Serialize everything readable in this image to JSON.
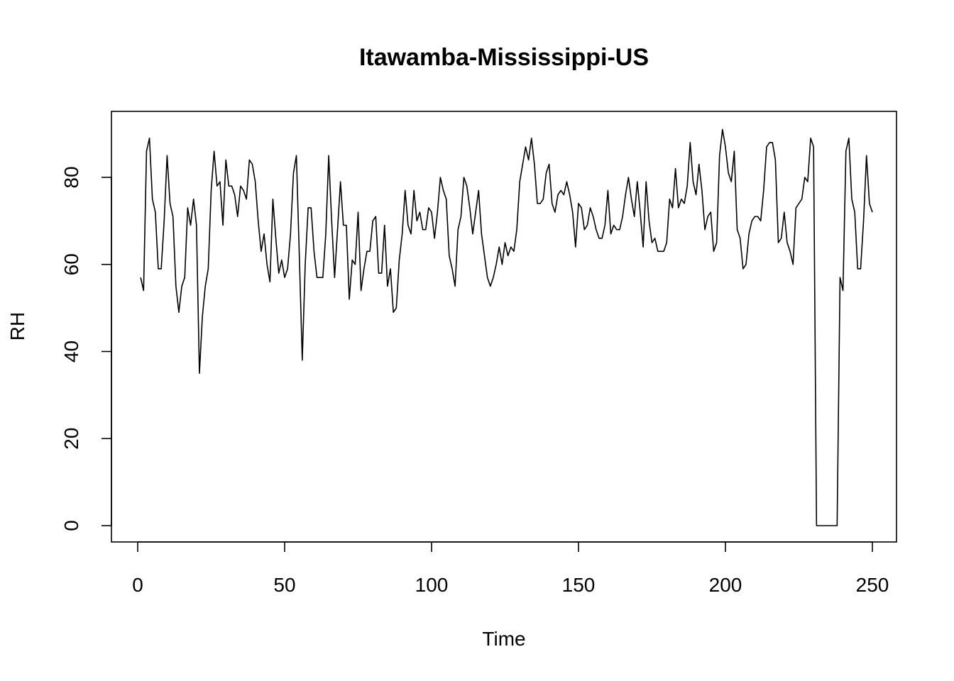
{
  "chart_data": {
    "type": "line",
    "title": "Itawamba-Mississippi-US",
    "xlabel": "Time",
    "ylabel": "RH",
    "xlim": [
      0,
      250
    ],
    "ylim": [
      0,
      90
    ],
    "x_ticks": [
      0,
      50,
      100,
      150,
      200,
      250
    ],
    "y_ticks": [
      0,
      20,
      40,
      60,
      80
    ],
    "grid": false,
    "legend": "none",
    "line_color": "#000000",
    "series": [
      {
        "values": [
          57,
          54,
          86,
          89,
          75,
          72,
          59,
          59,
          70,
          85,
          74,
          71,
          55,
          49,
          55,
          57,
          73,
          69,
          75,
          69,
          35,
          48,
          55,
          59,
          77,
          86,
          78,
          79,
          69,
          84,
          78,
          78,
          76,
          71,
          78,
          77,
          75,
          84,
          83,
          79,
          70,
          63,
          67,
          60,
          56,
          75,
          66,
          58,
          61,
          57,
          59,
          67,
          81,
          85,
          62,
          38,
          60,
          73,
          73,
          63,
          57,
          57,
          57,
          67,
          85,
          70,
          57,
          68,
          79,
          69,
          69,
          52,
          61,
          60,
          72,
          54,
          59,
          63,
          63,
          70,
          71,
          58,
          58,
          69,
          55,
          59,
          49,
          50,
          61,
          67,
          77,
          69,
          67,
          77,
          70,
          72,
          68,
          68,
          73,
          72,
          66,
          72,
          80,
          77,
          75,
          62,
          59,
          55,
          68,
          71,
          80,
          78,
          73,
          67,
          72,
          77,
          67,
          62,
          57,
          55,
          57,
          60,
          64,
          60,
          65,
          62,
          64,
          63,
          68,
          79,
          83,
          87,
          84,
          89,
          83,
          74,
          74,
          75,
          81,
          83,
          74,
          72,
          76,
          77,
          76,
          79,
          76,
          72,
          64,
          74,
          73,
          68,
          69,
          73,
          71,
          68,
          66,
          66,
          69,
          77,
          67,
          69,
          68,
          68,
          71,
          76,
          80,
          75,
          71,
          79,
          72,
          64,
          79,
          70,
          65,
          66,
          63,
          63,
          63,
          65,
          75,
          73,
          82,
          73,
          75,
          74,
          78,
          88,
          79,
          76,
          83,
          77,
          68,
          71,
          72,
          63,
          65,
          85,
          91,
          87,
          81,
          79,
          86,
          68,
          66,
          59,
          60,
          67,
          70,
          71,
          71,
          70,
          77,
          87,
          88,
          88,
          84,
          65,
          66,
          72,
          65,
          63,
          60,
          73,
          74,
          75,
          80,
          79,
          89,
          87,
          0,
          0,
          0,
          0,
          0,
          0,
          0,
          0,
          57,
          54,
          86,
          89,
          75,
          72,
          59,
          59,
          70,
          85,
          74,
          72
        ]
      }
    ]
  }
}
